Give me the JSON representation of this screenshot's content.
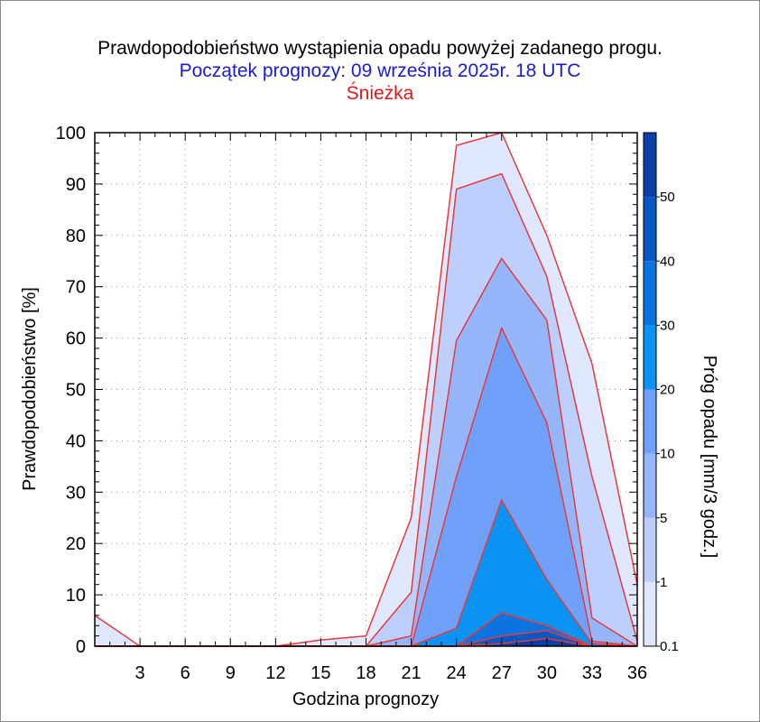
{
  "chart_data": {
    "type": "area",
    "title": "Prawdopodobieństwo wystąpienia opadu powyżej zadanego progu.",
    "subtitle": "Początek prognozy: 09 września 2025r. 18 UTC",
    "location": "Śnieżka",
    "xlabel": "Godzina prognozy",
    "ylabel": "Prawdopodobieństwo [%]",
    "colorbar_label": "Próg opadu [mm/3 godz.]",
    "xlim": [
      0,
      36
    ],
    "ylim": [
      0,
      100
    ],
    "x_ticks": [
      3,
      6,
      9,
      12,
      15,
      18,
      21,
      24,
      27,
      30,
      33,
      36
    ],
    "y_ticks": [
      0,
      10,
      20,
      30,
      40,
      50,
      60,
      70,
      80,
      90,
      100
    ],
    "x": [
      0,
      3,
      6,
      9,
      12,
      15,
      18,
      21,
      24,
      27,
      30,
      33,
      36
    ],
    "series": [
      {
        "threshold": 0.1,
        "color": "#dfe8ff",
        "values": [
          6,
          0,
          0,
          0,
          0,
          1.2,
          2,
          25,
          97.5,
          100,
          80,
          55,
          12
        ]
      },
      {
        "threshold": 1,
        "color": "#bccffd",
        "values": [
          0,
          0,
          0,
          0,
          0,
          0,
          0,
          10.5,
          89,
          92,
          72,
          33,
          1
        ]
      },
      {
        "threshold": 5,
        "color": "#96b6fb",
        "values": [
          0,
          0,
          0,
          0,
          0,
          0,
          0,
          2,
          59.5,
          75.5,
          63.5,
          5.5,
          0
        ]
      },
      {
        "threshold": 10,
        "color": "#6fa0fb",
        "values": [
          0,
          0,
          0,
          0,
          0,
          0,
          0,
          0,
          33,
          62,
          43.5,
          1,
          0
        ]
      },
      {
        "threshold": 20,
        "color": "#0a93f2",
        "values": [
          0,
          0,
          0,
          0,
          0,
          0,
          0,
          0,
          3.5,
          28.5,
          13,
          0.5,
          0
        ]
      },
      {
        "threshold": 30,
        "color": "#0a73e0",
        "values": [
          0,
          0,
          0,
          0,
          0,
          0,
          0,
          0,
          0,
          6.5,
          4,
          0,
          0
        ]
      },
      {
        "threshold": 40,
        "color": "#0658c4",
        "values": [
          0,
          0,
          0,
          0,
          0,
          0,
          0,
          0,
          0,
          2,
          3,
          0,
          0
        ]
      },
      {
        "threshold": 50,
        "color": "#0a3fa8",
        "values": [
          0,
          0,
          0,
          0,
          0,
          0,
          0,
          0,
          0,
          0.5,
          1.5,
          0,
          0
        ]
      }
    ],
    "outline_color": "#e83a3a",
    "colorbar": {
      "segments": [
        {
          "from": 0.1,
          "to": 1,
          "color": "#dfe8ff"
        },
        {
          "from": 1,
          "to": 5,
          "color": "#bccffd"
        },
        {
          "from": 5,
          "to": 10,
          "color": "#96b6fb"
        },
        {
          "from": 10,
          "to": 20,
          "color": "#6fa0fb"
        },
        {
          "from": 20,
          "to": 30,
          "color": "#0a93f2"
        },
        {
          "from": 30,
          "to": 40,
          "color": "#0a73e0"
        },
        {
          "from": 40,
          "to": 50,
          "color": "#0658c4"
        },
        {
          "from": 50,
          "to": 60,
          "color": "#0a3fa8"
        }
      ],
      "tick_labels": [
        "0.1",
        "1",
        "5",
        "10",
        "20",
        "30",
        "40",
        "50"
      ]
    }
  }
}
